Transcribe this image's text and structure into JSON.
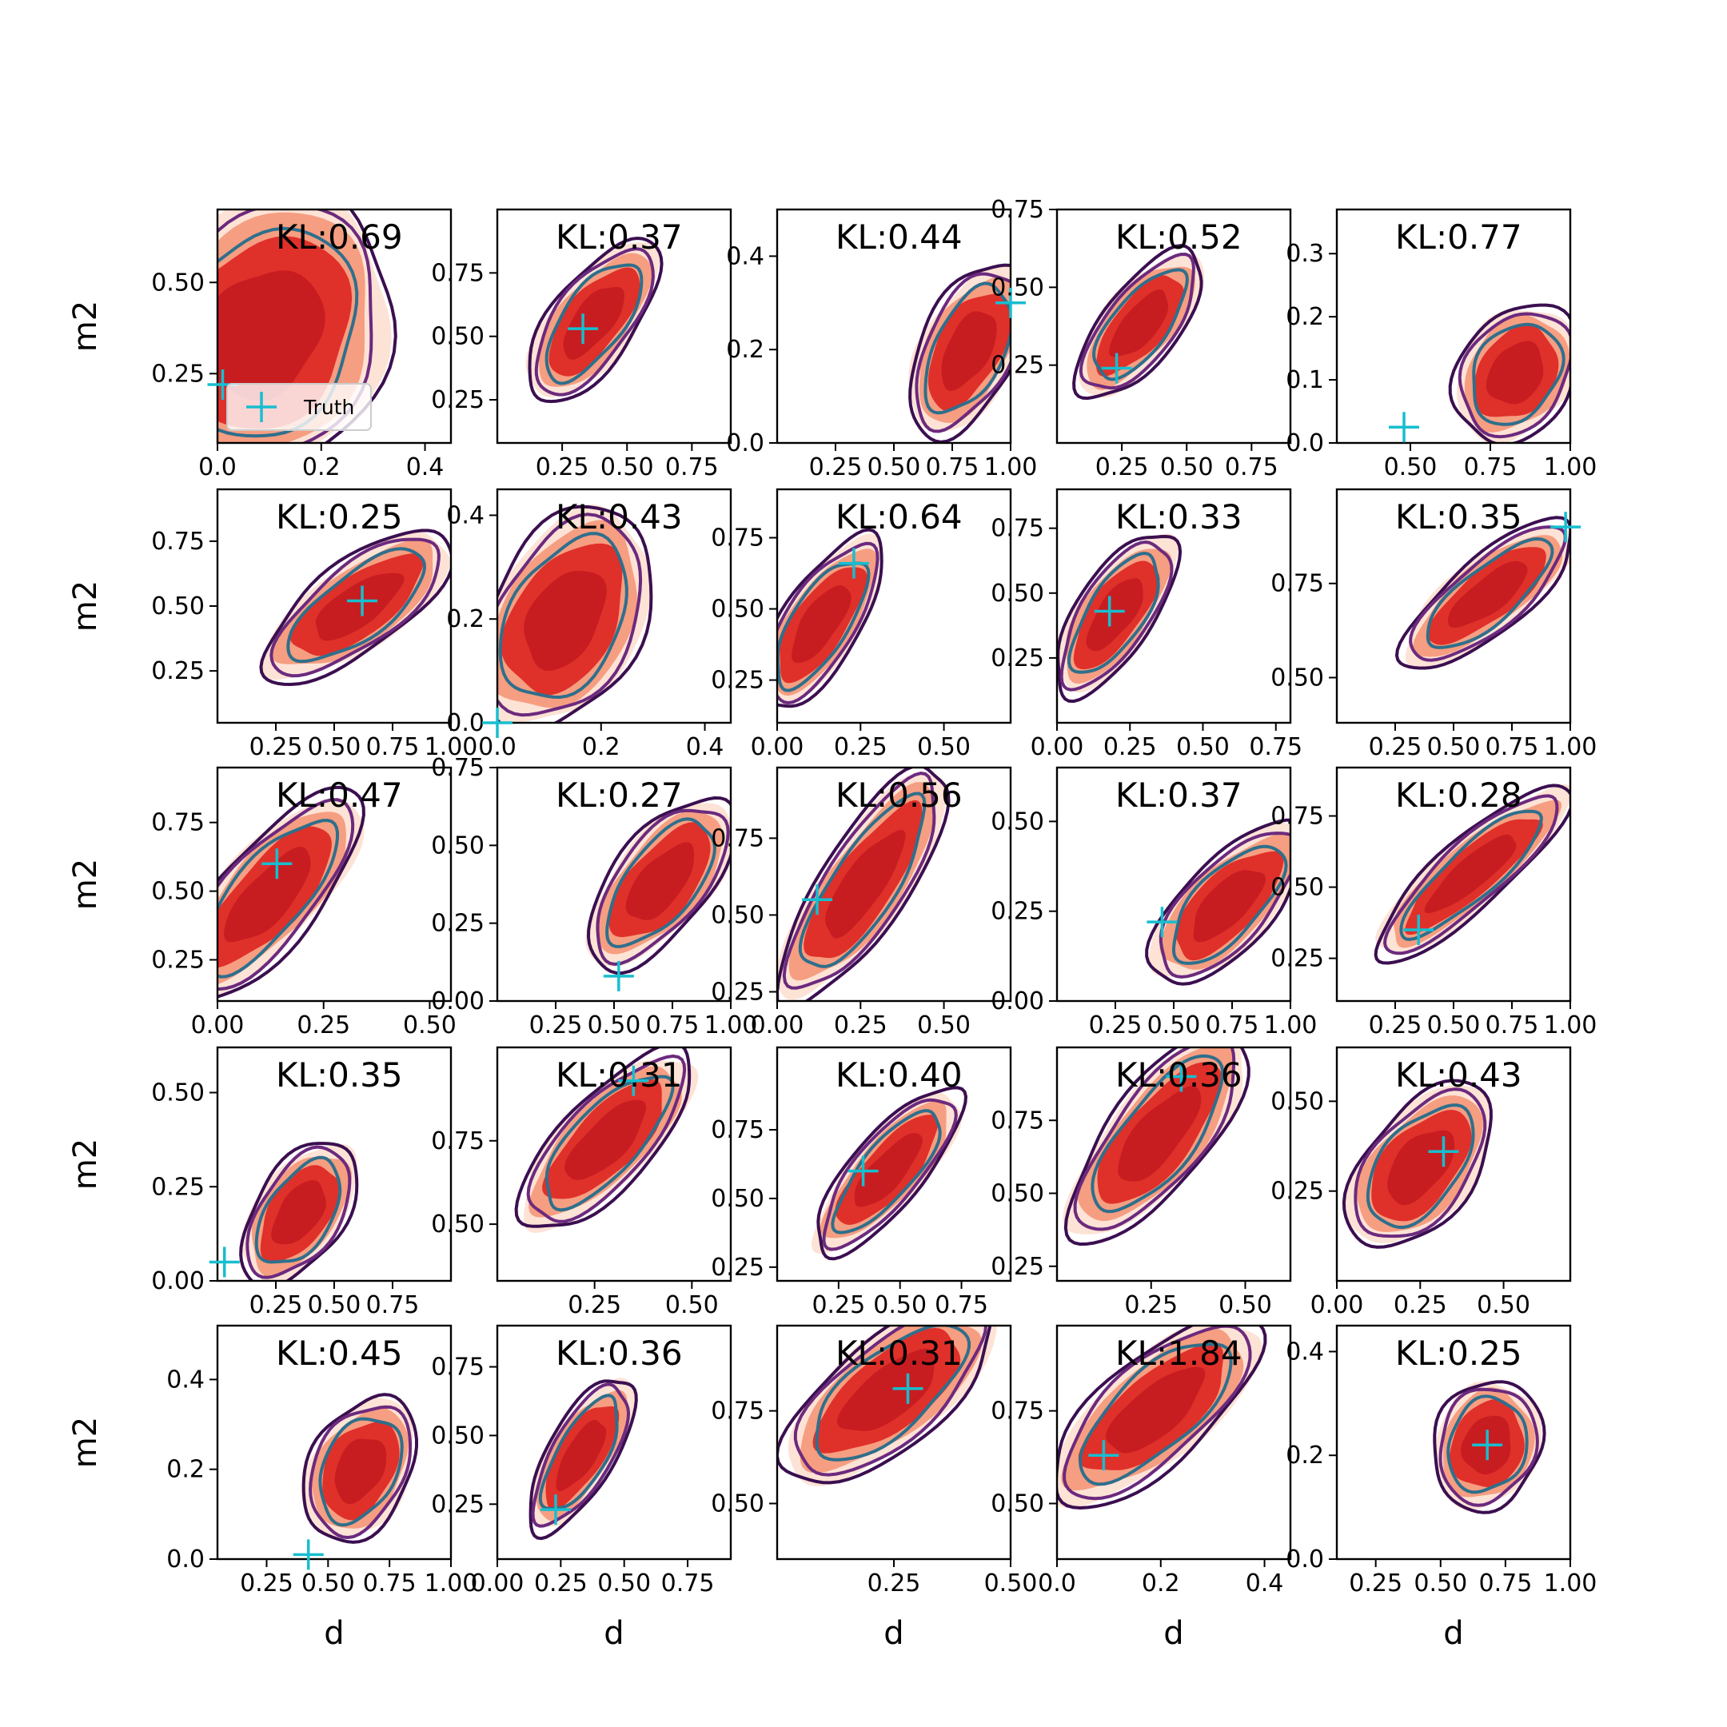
{
  "figure": {
    "legend_label": "Truth",
    "xlabel": "d",
    "ylabel": "m2",
    "colors": {
      "truth": "#17becf",
      "outer_contour": "#3b0f50",
      "mid_contour": "#6c2a7e",
      "inner_contour": "#2f6f8c",
      "fill_light": "#fde0d2",
      "fill_mid": "#f59a7c",
      "fill_dark": "#e0302a",
      "fill_core": "#c71d21"
    }
  },
  "chart_data": [
    {
      "type": "scatter",
      "kl_label": "KL:0.69",
      "xlim": [
        0.0,
        0.45
      ],
      "ylim": [
        0.06,
        0.7
      ],
      "xticks": [
        "0.0",
        "0.2",
        "0.4"
      ],
      "yticks": [
        "0.25",
        "0.50"
      ],
      "truth": [
        0.01,
        0.22
      ],
      "center": [
        0.09,
        0.36
      ],
      "axes": [
        0.25,
        0.16
      ],
      "angle": 58
    },
    {
      "type": "scatter",
      "kl_label": "KL:0.37",
      "xlim": [
        0.0,
        0.9
      ],
      "ylim": [
        0.08,
        1.0
      ],
      "xticks": [
        "0.25",
        "0.50",
        "0.75"
      ],
      "yticks": [
        "0.25",
        "0.50",
        "0.75"
      ],
      "truth": [
        0.33,
        0.53
      ],
      "center": [
        0.37,
        0.56
      ],
      "axes": [
        0.32,
        0.11
      ],
      "angle": 52
    },
    {
      "type": "scatter",
      "kl_label": "KL:0.44",
      "xlim": [
        0.0,
        1.0
      ],
      "ylim": [
        0.0,
        0.5
      ],
      "xticks": [
        "0.25",
        "0.50",
        "0.75",
        "1.00"
      ],
      "yticks": [
        "0.0",
        "0.2",
        "0.4"
      ],
      "truth": [
        1.0,
        0.3
      ],
      "center": [
        0.82,
        0.2
      ],
      "axes": [
        0.35,
        0.14
      ],
      "angle": 62
    },
    {
      "type": "scatter",
      "kl_label": "KL:0.52",
      "xlim": [
        0.0,
        0.9
      ],
      "ylim": [
        0.0,
        0.75
      ],
      "xticks": [
        "0.25",
        "0.50",
        "0.75"
      ],
      "yticks": [
        "0.25",
        "0.50",
        "0.75"
      ],
      "truth": [
        0.23,
        0.24
      ],
      "center": [
        0.32,
        0.38
      ],
      "axes": [
        0.3,
        0.1
      ],
      "angle": 50
    },
    {
      "type": "scatter",
      "kl_label": "KL:0.77",
      "xlim": [
        0.27,
        1.0
      ],
      "ylim": [
        0.0,
        0.37
      ],
      "xticks": [
        "0.50",
        "0.75",
        "1.00"
      ],
      "yticks": [
        "0.0",
        "0.1",
        "0.2",
        "0.3"
      ],
      "truth": [
        0.48,
        0.025
      ],
      "center": [
        0.83,
        0.11
      ],
      "axes": [
        0.2,
        0.12
      ],
      "angle": 55
    },
    {
      "type": "scatter",
      "kl_label": "KL:0.25",
      "xlim": [
        0.0,
        1.0
      ],
      "ylim": [
        0.05,
        0.95
      ],
      "xticks": [
        "0.25",
        "0.50",
        "0.75",
        "1.00"
      ],
      "yticks": [
        "0.25",
        "0.50",
        "0.75"
      ],
      "truth": [
        0.62,
        0.52
      ],
      "center": [
        0.6,
        0.5
      ],
      "axes": [
        0.42,
        0.13
      ],
      "angle": 35
    },
    {
      "type": "scatter",
      "kl_label": "KL:0.43",
      "xlim": [
        0.0,
        0.45
      ],
      "ylim": [
        0.0,
        0.45
      ],
      "xticks": [
        "0.0",
        "0.2",
        "0.4"
      ],
      "yticks": [
        "0.0",
        "0.2",
        "0.4"
      ],
      "truth": [
        0.0,
        0.0
      ],
      "center": [
        0.13,
        0.2
      ],
      "axes": [
        0.2,
        0.1
      ],
      "angle": 60
    },
    {
      "type": "scatter",
      "kl_label": "KL:0.64",
      "xlim": [
        0.0,
        0.7
      ],
      "ylim": [
        0.1,
        0.92
      ],
      "xticks": [
        "0.00",
        "0.25",
        "0.50"
      ],
      "yticks": [
        "0.25",
        "0.50",
        "0.75"
      ],
      "truth": [
        0.23,
        0.66
      ],
      "center": [
        0.13,
        0.45
      ],
      "axes": [
        0.26,
        0.08
      ],
      "angle": 56
    },
    {
      "type": "scatter",
      "kl_label": "KL:0.33",
      "xlim": [
        0.0,
        0.8
      ],
      "ylim": [
        0.0,
        0.9
      ],
      "xticks": [
        "0.00",
        "0.25",
        "0.50",
        "0.75"
      ],
      "yticks": [
        "0.25",
        "0.50",
        "0.75"
      ],
      "truth": [
        0.18,
        0.43
      ],
      "center": [
        0.2,
        0.42
      ],
      "axes": [
        0.28,
        0.09
      ],
      "angle": 55
    },
    {
      "type": "scatter",
      "kl_label": "KL:0.35",
      "xlim": [
        0.0,
        1.0
      ],
      "ylim": [
        0.38,
        1.0
      ],
      "xticks": [
        "0.25",
        "0.50",
        "0.75",
        "1.00"
      ],
      "yticks": [
        "0.50",
        "0.75"
      ],
      "truth": [
        0.98,
        0.9
      ],
      "center": [
        0.65,
        0.72
      ],
      "axes": [
        0.4,
        0.11
      ],
      "angle": 38
    },
    {
      "type": "scatter",
      "kl_label": "KL:0.47",
      "xlim": [
        0.0,
        0.55
      ],
      "ylim": [
        0.1,
        0.95
      ],
      "xticks": [
        "0.00",
        "0.25",
        "0.50"
      ],
      "yticks": [
        "0.25",
        "0.50",
        "0.75"
      ],
      "truth": [
        0.14,
        0.6
      ],
      "center": [
        0.12,
        0.48
      ],
      "axes": [
        0.27,
        0.08
      ],
      "angle": 48
    },
    {
      "type": "scatter",
      "kl_label": "KL:0.27",
      "xlim": [
        0.0,
        1.0
      ],
      "ylim": [
        0.0,
        0.75
      ],
      "xticks": [
        "0.25",
        "0.50",
        "0.75",
        "1.00"
      ],
      "yticks": [
        "0.00",
        "0.25",
        "0.50",
        "0.75"
      ],
      "truth": [
        0.52,
        0.08
      ],
      "center": [
        0.7,
        0.38
      ],
      "axes": [
        0.38,
        0.14
      ],
      "angle": 50
    },
    {
      "type": "scatter",
      "kl_label": "KL:0.56",
      "xlim": [
        0.0,
        0.7
      ],
      "ylim": [
        0.22,
        0.98
      ],
      "xticks": [
        "0.00",
        "0.25",
        "0.50"
      ],
      "yticks": [
        "0.25",
        "0.50",
        "0.75"
      ],
      "truth": [
        0.12,
        0.55
      ],
      "center": [
        0.26,
        0.6
      ],
      "axes": [
        0.36,
        0.09
      ],
      "angle": 55
    },
    {
      "type": "scatter",
      "kl_label": "KL:0.37",
      "xlim": [
        0.0,
        1.0
      ],
      "ylim": [
        0.0,
        0.65
      ],
      "xticks": [
        "0.25",
        "0.50",
        "0.75",
        "1.00"
      ],
      "yticks": [
        "0.00",
        "0.25",
        "0.50"
      ],
      "truth": [
        0.45,
        0.22
      ],
      "center": [
        0.73,
        0.27
      ],
      "axes": [
        0.38,
        0.13
      ],
      "angle": 45
    },
    {
      "type": "scatter",
      "kl_label": "KL:0.28",
      "xlim": [
        0.0,
        1.0
      ],
      "ylim": [
        0.1,
        0.92
      ],
      "xticks": [
        "0.25",
        "0.50",
        "0.75",
        "1.00"
      ],
      "yticks": [
        "0.25",
        "0.50",
        "0.75"
      ],
      "truth": [
        0.35,
        0.35
      ],
      "center": [
        0.58,
        0.55
      ],
      "axes": [
        0.47,
        0.1
      ],
      "angle": 40
    },
    {
      "type": "scatter",
      "kl_label": "KL:0.35",
      "xlim": [
        0.0,
        1.0
      ],
      "ylim": [
        0.0,
        0.62
      ],
      "xticks": [
        "0.25",
        "0.50",
        "0.75"
      ],
      "yticks": [
        "0.00",
        "0.25",
        "0.50"
      ],
      "truth": [
        0.03,
        0.05
      ],
      "center": [
        0.35,
        0.18
      ],
      "axes": [
        0.3,
        0.13
      ],
      "angle": 55
    },
    {
      "type": "scatter",
      "kl_label": "KL:0.31",
      "xlim": [
        0.0,
        0.6
      ],
      "ylim": [
        0.33,
        1.03
      ],
      "xticks": [
        "0.25",
        "0.50"
      ],
      "yticks": [
        "0.50",
        "0.75"
      ],
      "truth": [
        0.35,
        0.93
      ],
      "center": [
        0.28,
        0.75
      ],
      "axes": [
        0.26,
        0.08
      ],
      "angle": 45
    },
    {
      "type": "scatter",
      "kl_label": "KL:0.40",
      "xlim": [
        0.0,
        0.95
      ],
      "ylim": [
        0.2,
        1.05
      ],
      "xticks": [
        "0.25",
        "0.50",
        "0.75"
      ],
      "yticks": [
        "0.25",
        "0.50",
        "0.75"
      ],
      "truth": [
        0.35,
        0.6
      ],
      "center": [
        0.45,
        0.6
      ],
      "axes": [
        0.37,
        0.1
      ],
      "angle": 48
    },
    {
      "type": "scatter",
      "kl_label": "KL:0.36",
      "xlim": [
        0.0,
        0.62
      ],
      "ylim": [
        0.2,
        1.0
      ],
      "xticks": [
        "0.25",
        "0.50"
      ],
      "yticks": [
        "0.25",
        "0.50",
        "0.75"
      ],
      "truth": [
        0.33,
        0.9
      ],
      "center": [
        0.27,
        0.7
      ],
      "axes": [
        0.3,
        0.09
      ],
      "angle": 50
    },
    {
      "type": "scatter",
      "kl_label": "KL:0.43",
      "xlim": [
        0.0,
        0.7
      ],
      "ylim": [
        0.0,
        0.65
      ],
      "xticks": [
        "0.00",
        "0.25",
        "0.50"
      ],
      "yticks": [
        "0.25",
        "0.50"
      ],
      "truth": [
        0.32,
        0.36
      ],
      "center": [
        0.25,
        0.32
      ],
      "axes": [
        0.25,
        0.11
      ],
      "angle": 50
    },
    {
      "type": "scatter",
      "kl_label": "KL:0.45",
      "xlim": [
        0.05,
        1.0
      ],
      "ylim": [
        0.0,
        0.52
      ],
      "xticks": [
        "0.25",
        "0.50",
        "0.75",
        "1.00"
      ],
      "yticks": [
        "0.0",
        "0.2",
        "0.4"
      ],
      "truth": [
        0.42,
        0.01
      ],
      "center": [
        0.63,
        0.2
      ],
      "axes": [
        0.27,
        0.14
      ],
      "angle": 62
    },
    {
      "type": "scatter",
      "kl_label": "KL:0.36",
      "xlim": [
        0.0,
        0.92
      ],
      "ylim": [
        0.05,
        0.9
      ],
      "xticks": [
        "0.00",
        "0.25",
        "0.50",
        "0.75"
      ],
      "yticks": [
        "0.25",
        "0.50",
        "0.75"
      ],
      "truth": [
        0.23,
        0.23
      ],
      "center": [
        0.33,
        0.43
      ],
      "axes": [
        0.3,
        0.09
      ],
      "angle": 58
    },
    {
      "type": "scatter",
      "kl_label": "KL:0.31",
      "xlim": [
        0.0,
        0.5
      ],
      "ylim": [
        0.35,
        0.98
      ],
      "xticks": [
        "0.25",
        "0.50"
      ],
      "yticks": [
        "0.50",
        "0.75"
      ],
      "truth": [
        0.28,
        0.81
      ],
      "center": [
        0.24,
        0.8
      ],
      "axes": [
        0.24,
        0.08
      ],
      "angle": 38
    },
    {
      "type": "scatter",
      "kl_label": "KL:1.84",
      "xlim": [
        0.0,
        0.45
      ],
      "ylim": [
        0.35,
        0.98
      ],
      "xticks": [
        "0.0",
        "0.2",
        "0.4"
      ],
      "yticks": [
        "0.50",
        "0.75"
      ],
      "truth": [
        0.09,
        0.63
      ],
      "center": [
        0.19,
        0.75
      ],
      "axes": [
        0.22,
        0.07
      ],
      "angle": 40
    },
    {
      "type": "scatter",
      "kl_label": "KL:0.25",
      "xlim": [
        0.1,
        1.0
      ],
      "ylim": [
        0.0,
        0.45
      ],
      "xticks": [
        "0.25",
        "0.50",
        "0.75",
        "1.00"
      ],
      "yticks": [
        "0.0",
        "0.2",
        "0.4"
      ],
      "truth": [
        0.68,
        0.22
      ],
      "center": [
        0.68,
        0.22
      ],
      "axes": [
        0.22,
        0.14
      ],
      "angle": 70
    }
  ]
}
